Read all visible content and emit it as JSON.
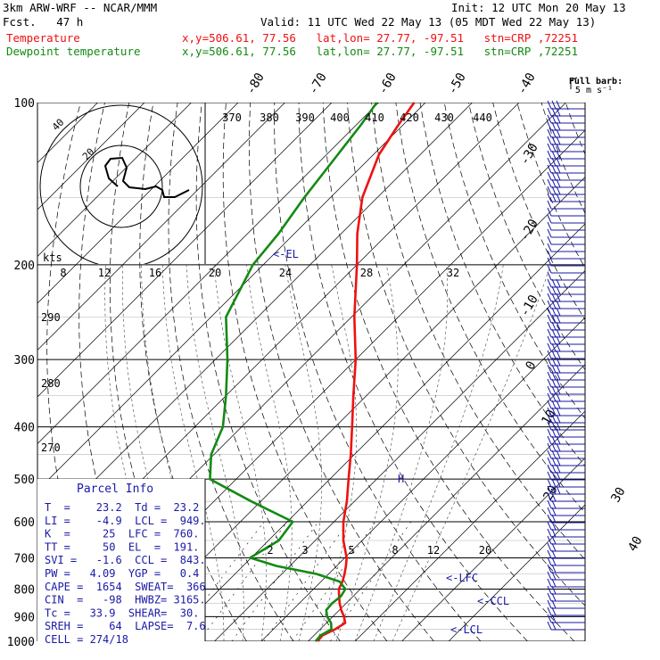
{
  "header": {
    "model": "3km ARW-WRF -- NCAR/MMM",
    "init": "Init: 12 UTC Mon 20 May 13",
    "fcst": "Fcst.   47 h",
    "valid": "Valid: 11 UTC Wed 22 May 13 (05 MDT Wed 22 May 13)",
    "temp_label": "Temperature",
    "dew_label": "Dewpoint temperature",
    "temp_info": "x,y=506.61, 77.56   lat,lon= 27.77, -97.51   stn=CRP ,72251",
    "dew_info": "x,y=506.61, 77.56   lat,lon= 27.77, -97.51   stn=CRP ,72251"
  },
  "colors": {
    "temperature": "#ee1111",
    "dewpoint": "#138a13",
    "barb": "#1a1aa6",
    "label": "#1a1aa6",
    "text": "#000000"
  },
  "wind_legend": {
    "title": "Full barb:",
    "value": "5 m s⁻¹"
  },
  "hodograph": {
    "units": "kts",
    "ring_labels": [
      "40",
      "20"
    ],
    "ticks": [
      "8",
      "12",
      "16",
      "20",
      "24",
      "28",
      "32"
    ]
  },
  "isotherm_labels": [
    "-80",
    "-70",
    "-60",
    "-50",
    "-40",
    "-30",
    "-20",
    "-10",
    "0",
    "10",
    "20",
    "30",
    "40"
  ],
  "theta_labels": [
    "370",
    "380",
    "390",
    "400",
    "410",
    "420",
    "430",
    "440"
  ],
  "theta_side_labels": [
    "290",
    "280",
    "270"
  ],
  "mixing_ratio_labels": [
    "2",
    "3",
    "5",
    "8",
    "12",
    "20"
  ],
  "level_markers": {
    "el": "<-EL",
    "lfc": "<-LFC",
    "ccl": "<-CCL",
    "lcl": "<-LCL",
    "h": "H"
  },
  "parcel_info": {
    "title": "Parcel Info",
    "rows": [
      "T  =    23.2  Td =  23.2",
      "LI =    -4.9  LCL =  949.",
      "K  =     25  LFC =  760.",
      "TT =     50  EL  =  191.",
      "SVI =   -1.6  CCL =  843.",
      "PW =   4.09  YGP =   0.4",
      "CAPE =  1654  SWEAT=  366",
      "CIN  =   -98  HWBZ= 3165.",
      "Tc =   33.9  SHEAR=  30.",
      "SREH =    64  LAPSE=  7.6",
      "CELL = 274/18"
    ]
  },
  "chart_data": {
    "type": "line",
    "title": "",
    "ylabel": "",
    "y_scale": "log",
    "pressure_levels": [
      100,
      200,
      300,
      400,
      500,
      600,
      700,
      800,
      900,
      1000
    ],
    "xlim": [
      -40,
      40
    ],
    "series": [
      {
        "name": "Temperature",
        "color": "#ee1111",
        "points": [
          {
            "p": 1000,
            "t": 22.0
          },
          {
            "p": 975,
            "t": 21.8
          },
          {
            "p": 950,
            "t": 23.2
          },
          {
            "p": 925,
            "t": 24.0
          },
          {
            "p": 900,
            "t": 22.4
          },
          {
            "p": 875,
            "t": 20.4
          },
          {
            "p": 850,
            "t": 18.6
          },
          {
            "p": 825,
            "t": 17.0
          },
          {
            "p": 800,
            "t": 15.4
          },
          {
            "p": 775,
            "t": 14.6
          },
          {
            "p": 750,
            "t": 13.4
          },
          {
            "p": 725,
            "t": 12.0
          },
          {
            "p": 700,
            "t": 10.4
          },
          {
            "p": 650,
            "t": 6.0
          },
          {
            "p": 600,
            "t": 2.0
          },
          {
            "p": 550,
            "t": -1.6
          },
          {
            "p": 500,
            "t": -6.0
          },
          {
            "p": 450,
            "t": -10.8
          },
          {
            "p": 400,
            "t": -16.4
          },
          {
            "p": 350,
            "t": -22.8
          },
          {
            "p": 300,
            "t": -30.0
          },
          {
            "p": 250,
            "t": -39.4
          },
          {
            "p": 200,
            "t": -50.0
          },
          {
            "p": 175,
            "t": -56.6
          },
          {
            "p": 150,
            "t": -63.2
          },
          {
            "p": 125,
            "t": -68.8
          },
          {
            "p": 110,
            "t": -71.0
          },
          {
            "p": 100,
            "t": -72.4
          }
        ]
      },
      {
        "name": "Dewpoint temperature",
        "color": "#138a13",
        "points": [
          {
            "p": 1000,
            "t": 21.6
          },
          {
            "p": 975,
            "t": 21.4
          },
          {
            "p": 950,
            "t": 22.4
          },
          {
            "p": 925,
            "t": 21.0
          },
          {
            "p": 900,
            "t": 18.8
          },
          {
            "p": 875,
            "t": 17.2
          },
          {
            "p": 850,
            "t": 17.0
          },
          {
            "p": 825,
            "t": 17.4
          },
          {
            "p": 800,
            "t": 16.8
          },
          {
            "p": 775,
            "t": 14.0
          },
          {
            "p": 750,
            "t": 7.4
          },
          {
            "p": 725,
            "t": -2.8
          },
          {
            "p": 700,
            "t": -10.2
          },
          {
            "p": 650,
            "t": -7.8
          },
          {
            "p": 600,
            "t": -8.8
          },
          {
            "p": 550,
            "t": -22.0
          },
          {
            "p": 500,
            "t": -35.6
          },
          {
            "p": 450,
            "t": -40.6
          },
          {
            "p": 400,
            "t": -44.0
          },
          {
            "p": 350,
            "t": -50.0
          },
          {
            "p": 300,
            "t": -57.4
          },
          {
            "p": 250,
            "t": -66.8
          },
          {
            "p": 200,
            "t": -72.2
          },
          {
            "p": 175,
            "t": -73.4
          },
          {
            "p": 150,
            "t": -75.6
          },
          {
            "p": 125,
            "t": -77.6
          },
          {
            "p": 110,
            "t": -79.0
          },
          {
            "p": 100,
            "t": -80.4
          }
        ]
      }
    ]
  }
}
